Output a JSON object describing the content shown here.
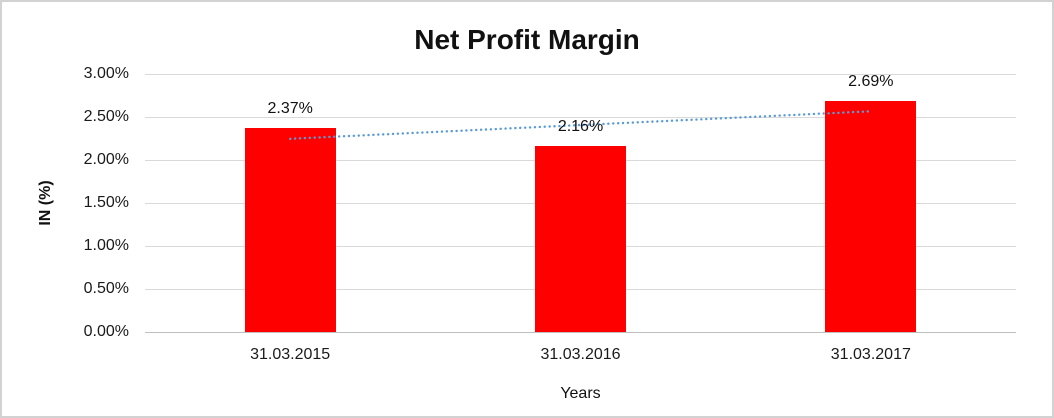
{
  "chart_data": {
    "type": "bar",
    "title": "Net Profit Margin",
    "xlabel": "Years",
    "ylabel": "IN (%)",
    "categories": [
      "31.03.2015",
      "31.03.2016",
      "31.03.2017"
    ],
    "values": [
      2.37,
      2.16,
      2.69
    ],
    "data_labels": [
      "2.37%",
      "2.16%",
      "2.69%"
    ],
    "ylim": [
      0,
      3
    ],
    "y_tick_step": 0.5,
    "y_ticks": [
      0,
      0.5,
      1,
      1.5,
      2,
      2.5,
      3
    ],
    "y_tick_labels": [
      "0.00%",
      "0.50%",
      "1.00%",
      "1.50%",
      "2.00%",
      "2.50%",
      "3.00%"
    ],
    "grid": "horizontal",
    "legend_position": "none",
    "trendline": {
      "type": "linear",
      "style": "dotted"
    },
    "colors": {
      "bar": "#ff0000",
      "trendline": "#5b9bd5",
      "gridline": "#d9d9d9",
      "axis_line": "#bfbfbf",
      "text": "#111111"
    }
  }
}
